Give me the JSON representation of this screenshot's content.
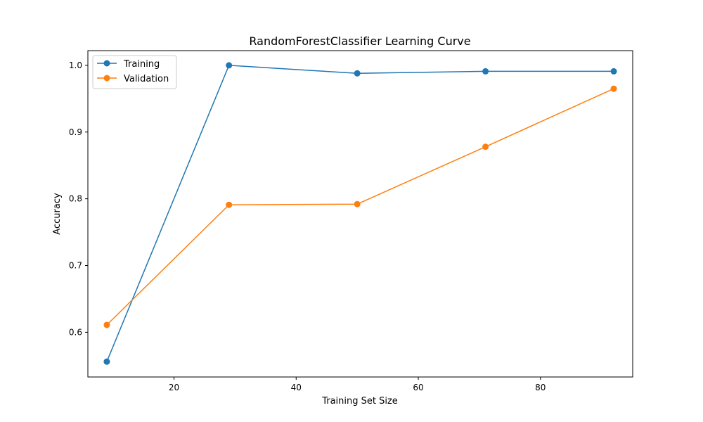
{
  "chart_data": {
    "type": "line",
    "title": "RandomForestClassifier Learning Curve",
    "xlabel": "Training Set Size",
    "ylabel": "Accuracy",
    "xlim": [
      5.9,
      95.1
    ],
    "ylim": [
      0.533,
      1.022
    ],
    "x_ticks": [
      20,
      40,
      60,
      80
    ],
    "y_ticks": [
      0.6,
      0.7,
      0.8,
      0.9,
      1.0
    ],
    "x_tick_labels": [
      "20",
      "40",
      "60",
      "80"
    ],
    "y_tick_labels": [
      "0.6",
      "0.7",
      "0.8",
      "0.9",
      "1.0"
    ],
    "grid": false,
    "legend_position": "top-left",
    "x": [
      9,
      29,
      50,
      71,
      92
    ],
    "series": [
      {
        "name": "Training",
        "color": "#1f77b4",
        "values": [
          0.556,
          1.0,
          0.988,
          0.991,
          0.991
        ]
      },
      {
        "name": "Validation",
        "color": "#ff7f0e",
        "values": [
          0.611,
          0.791,
          0.792,
          0.878,
          0.965
        ]
      }
    ]
  }
}
